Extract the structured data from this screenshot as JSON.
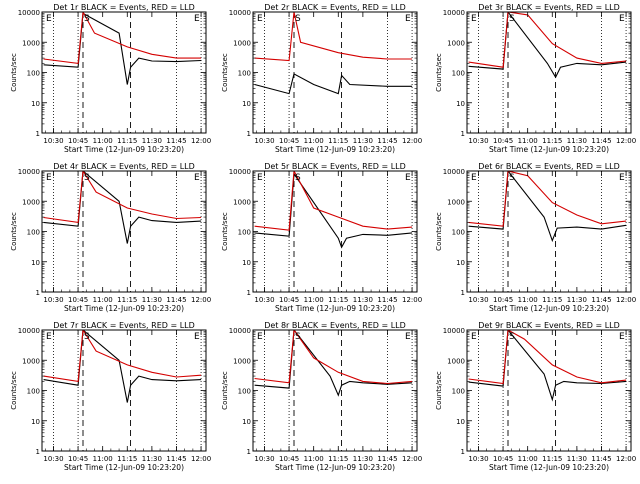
{
  "chart_data": [
    {
      "type": "line",
      "title": "Det 1r BLACK = Events, RED = LLD",
      "xlabel": "Start Time (12-Jun-09 10:23:20)",
      "ylabel": "Counts/sec",
      "x_ticks": [
        "10:30",
        "10:45",
        "11:00",
        "11:15",
        "11:30",
        "11:45",
        "12:00"
      ],
      "y_ticks": [
        "1",
        "10",
        "100",
        "1000",
        "10000"
      ],
      "y_scale": "log",
      "ylim": [
        1,
        10000
      ],
      "markers": [
        "E",
        "S",
        "E"
      ],
      "series": [
        {
          "color": "#000000",
          "points": [
            [
              "10:24",
              180
            ],
            [
              "10:45",
              150
            ],
            [
              "10:48",
              9000
            ],
            [
              "11:10",
              2000
            ],
            [
              "11:15",
              40
            ],
            [
              "11:17",
              150
            ],
            [
              "11:22",
              300
            ],
            [
              "11:30",
              240
            ],
            [
              "11:45",
              230
            ],
            [
              "12:00",
              250
            ]
          ]
        },
        {
          "color": "#d40000",
          "points": [
            [
              "10:24",
              280
            ],
            [
              "10:45",
              200
            ],
            [
              "10:48",
              10000
            ],
            [
              "10:55",
              2000
            ],
            [
              "11:15",
              700
            ],
            [
              "11:30",
              400
            ],
            [
              "11:45",
              300
            ],
            [
              "12:00",
              300
            ]
          ]
        }
      ]
    },
    {
      "type": "line",
      "title": "Det 2r BLACK = Events, RED = LLD",
      "xlabel": "Start Time (12-Jun-09 10:23:20)",
      "ylabel": "Counts/sec",
      "x_ticks": [
        "10:30",
        "10:45",
        "11:00",
        "11:15",
        "11:30",
        "11:45",
        "12:00"
      ],
      "y_ticks": [
        "1",
        "10",
        "100",
        "1000",
        "10000"
      ],
      "y_scale": "log",
      "ylim": [
        1,
        10000
      ],
      "markers": [
        "E",
        "S",
        "E"
      ],
      "series": [
        {
          "color": "#000000",
          "points": [
            [
              "10:24",
              40
            ],
            [
              "10:45",
              20
            ],
            [
              "10:48",
              90
            ],
            [
              "11:00",
              40
            ],
            [
              "11:15",
              20
            ],
            [
              "11:17",
              80
            ],
            [
              "11:22",
              40
            ],
            [
              "11:45",
              35
            ],
            [
              "12:00",
              35
            ]
          ]
        },
        {
          "color": "#d40000",
          "points": [
            [
              "10:24",
              300
            ],
            [
              "10:45",
              250
            ],
            [
              "10:48",
              10000
            ],
            [
              "10:52",
              1000
            ],
            [
              "11:15",
              450
            ],
            [
              "11:30",
              320
            ],
            [
              "11:45",
              280
            ],
            [
              "12:00",
              280
            ]
          ]
        }
      ]
    },
    {
      "type": "line",
      "title": "Det 3r BLACK = Events, RED = LLD",
      "xlabel": "Start Time (12-Jun-09 10:23:20)",
      "ylabel": "Counts/sec",
      "x_ticks": [
        "10:30",
        "10:45",
        "11:00",
        "11:15",
        "11:30",
        "11:45",
        "12:00"
      ],
      "y_ticks": [
        "1",
        "10",
        "100",
        "1000",
        "10000"
      ],
      "y_scale": "log",
      "ylim": [
        1,
        10000
      ],
      "markers": [
        "E",
        "S",
        "E"
      ],
      "series": [
        {
          "color": "#000000",
          "points": [
            [
              "10:24",
              160
            ],
            [
              "10:45",
              130
            ],
            [
              "10:48",
              10000
            ],
            [
              "11:12",
              200
            ],
            [
              "11:17",
              70
            ],
            [
              "11:20",
              150
            ],
            [
              "11:30",
              200
            ],
            [
              "11:45",
              180
            ],
            [
              "12:00",
              220
            ]
          ]
        },
        {
          "color": "#d40000",
          "points": [
            [
              "10:24",
              220
            ],
            [
              "10:45",
              150
            ],
            [
              "10:48",
              10000
            ],
            [
              "11:00",
              8000
            ],
            [
              "11:15",
              900
            ],
            [
              "11:30",
              300
            ],
            [
              "11:45",
              200
            ],
            [
              "12:00",
              240
            ]
          ]
        }
      ]
    },
    {
      "type": "line",
      "title": "Det 4r BLACK = Events, RED = LLD",
      "xlabel": "Start Time (12-Jun-09 10:23:20)",
      "ylabel": "Counts/sec",
      "x_ticks": [
        "10:30",
        "10:45",
        "11:00",
        "11:15",
        "11:30",
        "11:45",
        "12:00"
      ],
      "y_ticks": [
        "1",
        "10",
        "100",
        "1000",
        "10000"
      ],
      "y_scale": "log",
      "ylim": [
        1,
        10000
      ],
      "markers": [
        "E",
        "S",
        "E"
      ],
      "series": [
        {
          "color": "#000000",
          "points": [
            [
              "10:24",
              200
            ],
            [
              "10:45",
              150
            ],
            [
              "10:48",
              10000
            ],
            [
              "11:10",
              1000
            ],
            [
              "11:15",
              40
            ],
            [
              "11:17",
              150
            ],
            [
              "11:22",
              300
            ],
            [
              "11:30",
              230
            ],
            [
              "11:45",
              200
            ],
            [
              "12:00",
              220
            ]
          ]
        },
        {
          "color": "#d40000",
          "points": [
            [
              "10:24",
              290
            ],
            [
              "10:45",
              200
            ],
            [
              "10:48",
              10000
            ],
            [
              "10:56",
              2000
            ],
            [
              "11:15",
              600
            ],
            [
              "11:30",
              380
            ],
            [
              "11:45",
              270
            ],
            [
              "12:00",
              290
            ]
          ]
        }
      ]
    },
    {
      "type": "line",
      "title": "Det 5r BLACK = Events, RED = LLD",
      "xlabel": "Start Time (12-Jun-09 10:23:20)",
      "ylabel": "Counts/sec",
      "x_ticks": [
        "10:30",
        "10:45",
        "11:00",
        "11:15",
        "11:30",
        "11:45",
        "12:00"
      ],
      "y_ticks": [
        "1",
        "10",
        "100",
        "1000",
        "10000"
      ],
      "y_scale": "log",
      "ylim": [
        1,
        10000
      ],
      "markers": [
        "E",
        "S",
        "E"
      ],
      "series": [
        {
          "color": "#000000",
          "points": [
            [
              "10:24",
              90
            ],
            [
              "10:45",
              70
            ],
            [
              "10:48",
              8000
            ],
            [
              "11:15",
              60
            ],
            [
              "11:17",
              30
            ],
            [
              "11:20",
              60
            ],
            [
              "11:30",
              80
            ],
            [
              "11:45",
              75
            ],
            [
              "12:00",
              90
            ]
          ]
        },
        {
          "color": "#d40000",
          "points": [
            [
              "10:24",
              150
            ],
            [
              "10:45",
              110
            ],
            [
              "10:48",
              10000
            ],
            [
              "11:00",
              600
            ],
            [
              "11:15",
              300
            ],
            [
              "11:30",
              150
            ],
            [
              "11:45",
              120
            ],
            [
              "12:00",
              140
            ]
          ]
        }
      ]
    },
    {
      "type": "line",
      "title": "Det 6r BLACK = Events, RED = LLD",
      "xlabel": "Start Time (12-Jun-09 10:23:20)",
      "ylabel": "Counts/sec",
      "x_ticks": [
        "10:30",
        "10:45",
        "11:00",
        "11:15",
        "11:30",
        "11:45",
        "12:00"
      ],
      "y_ticks": [
        "1",
        "10",
        "100",
        "1000",
        "10000"
      ],
      "y_scale": "log",
      "ylim": [
        1,
        10000
      ],
      "markers": [
        "E",
        "S",
        "E"
      ],
      "series": [
        {
          "color": "#000000",
          "points": [
            [
              "10:24",
              150
            ],
            [
              "10:45",
              120
            ],
            [
              "10:48",
              10000
            ],
            [
              "11:10",
              300
            ],
            [
              "11:15",
              50
            ],
            [
              "11:18",
              130
            ],
            [
              "11:30",
              140
            ],
            [
              "11:45",
              120
            ],
            [
              "12:00",
              160
            ]
          ]
        },
        {
          "color": "#d40000",
          "points": [
            [
              "10:24",
              200
            ],
            [
              "10:45",
              150
            ],
            [
              "10:48",
              10000
            ],
            [
              "11:00",
              7000
            ],
            [
              "11:15",
              900
            ],
            [
              "11:30",
              350
            ],
            [
              "11:45",
              180
            ],
            [
              "12:00",
              220
            ]
          ]
        }
      ]
    },
    {
      "type": "line",
      "title": "Det 7r BLACK = Events, RED = LLD",
      "xlabel": "Start Time (12-Jun-09 10:23:20)",
      "ylabel": "Counts/sec",
      "x_ticks": [
        "10:30",
        "10:45",
        "11:00",
        "11:15",
        "11:30",
        "11:45",
        "12:00"
      ],
      "y_ticks": [
        "1",
        "10",
        "100",
        "1000",
        "10000"
      ],
      "y_scale": "log",
      "ylim": [
        1,
        10000
      ],
      "markers": [
        "E",
        "S",
        "E"
      ],
      "series": [
        {
          "color": "#000000",
          "points": [
            [
              "10:24",
              230
            ],
            [
              "10:45",
              150
            ],
            [
              "10:48",
              10000
            ],
            [
              "11:10",
              1000
            ],
            [
              "11:15",
              40
            ],
            [
              "11:17",
              150
            ],
            [
              "11:22",
              300
            ],
            [
              "11:30",
              230
            ],
            [
              "11:45",
              210
            ],
            [
              "12:00",
              230
            ]
          ]
        },
        {
          "color": "#d40000",
          "points": [
            [
              "10:24",
              300
            ],
            [
              "10:45",
              200
            ],
            [
              "10:48",
              10000
            ],
            [
              "10:56",
              2000
            ],
            [
              "11:15",
              700
            ],
            [
              "11:30",
              400
            ],
            [
              "11:45",
              280
            ],
            [
              "12:00",
              320
            ]
          ]
        }
      ]
    },
    {
      "type": "line",
      "title": "Det 8r BLACK = Events, RED = LLD",
      "xlabel": "Start Time (12-Jun-09 10:23:20)",
      "ylabel": "Counts/sec",
      "x_ticks": [
        "10:30",
        "10:45",
        "11:00",
        "11:15",
        "11:30",
        "11:45",
        "12:00"
      ],
      "y_ticks": [
        "1",
        "10",
        "100",
        "1000",
        "10000"
      ],
      "y_scale": "log",
      "ylim": [
        1,
        10000
      ],
      "markers": [
        "E",
        "S",
        "E"
      ],
      "series": [
        {
          "color": "#000000",
          "points": [
            [
              "10:24",
              150
            ],
            [
              "10:45",
              120
            ],
            [
              "10:48",
              10000
            ],
            [
              "11:10",
              300
            ],
            [
              "11:15",
              70
            ],
            [
              "11:17",
              150
            ],
            [
              "11:22",
              200
            ],
            [
              "11:30",
              180
            ],
            [
              "11:45",
              160
            ],
            [
              "12:00",
              180
            ]
          ]
        },
        {
          "color": "#d40000",
          "points": [
            [
              "10:24",
              250
            ],
            [
              "10:45",
              180
            ],
            [
              "10:48",
              10000
            ],
            [
              "11:00",
              1200
            ],
            [
              "11:15",
              400
            ],
            [
              "11:30",
              200
            ],
            [
              "11:45",
              170
            ],
            [
              "12:00",
              200
            ]
          ]
        }
      ]
    },
    {
      "type": "line",
      "title": "Det 9r BLACK = Events, RED = LLD",
      "xlabel": "Start Time (12-Jun-09 10:23:20)",
      "ylabel": "Counts/sec",
      "x_ticks": [
        "10:30",
        "10:45",
        "11:00",
        "11:15",
        "11:30",
        "11:45",
        "12:00"
      ],
      "y_ticks": [
        "1",
        "10",
        "100",
        "1000",
        "10000"
      ],
      "y_scale": "log",
      "ylim": [
        1,
        10000
      ],
      "markers": [
        "E",
        "S",
        "E"
      ],
      "series": [
        {
          "color": "#000000",
          "points": [
            [
              "10:24",
              190
            ],
            [
              "10:45",
              140
            ],
            [
              "10:48",
              10000
            ],
            [
              "11:10",
              350
            ],
            [
              "11:15",
              50
            ],
            [
              "11:17",
              150
            ],
            [
              "11:22",
              200
            ],
            [
              "11:30",
              180
            ],
            [
              "11:45",
              170
            ],
            [
              "12:00",
              200
            ]
          ]
        },
        {
          "color": "#d40000",
          "points": [
            [
              "10:24",
              240
            ],
            [
              "10:45",
              170
            ],
            [
              "10:48",
              10000
            ],
            [
              "10:58",
              5000
            ],
            [
              "11:15",
              700
            ],
            [
              "11:30",
              280
            ],
            [
              "11:45",
              180
            ],
            [
              "12:00",
              220
            ]
          ]
        }
      ]
    }
  ]
}
